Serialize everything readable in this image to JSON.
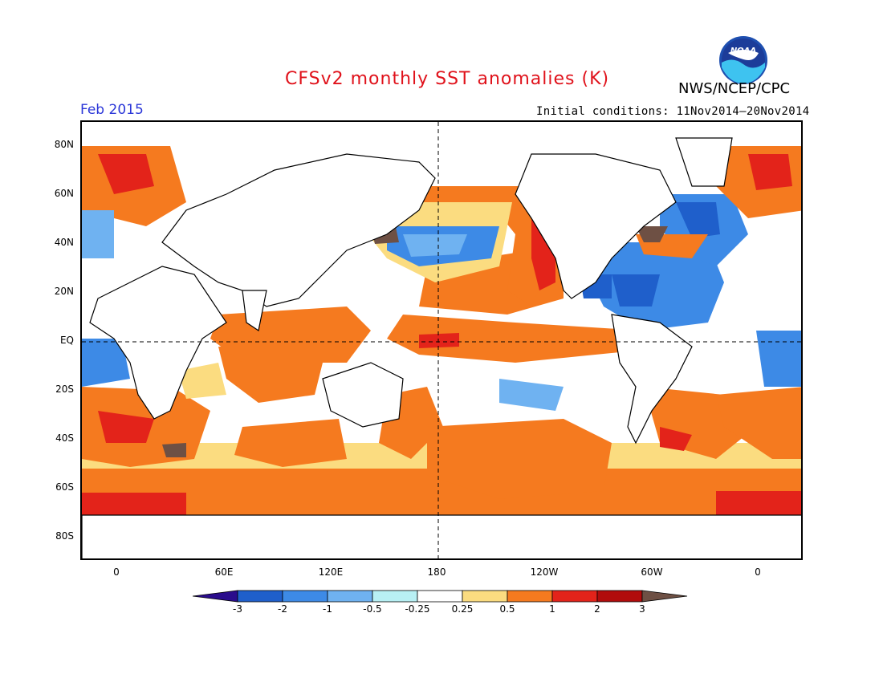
{
  "header": {
    "title": "CFSv2 monthly SST anomalies (K)",
    "agency": "NWS/NCEP/CPC",
    "logo_text": "NOAA",
    "month": "Feb 2015",
    "initial_conditions": "Initial conditions: 11Nov2014–20Nov2014"
  },
  "axes": {
    "lat_labels": [
      "80N",
      "60N",
      "40N",
      "20N",
      "EQ",
      "20S",
      "40S",
      "60S",
      "80S"
    ],
    "lon_labels": [
      "0",
      "60E",
      "120E",
      "180",
      "120W",
      "60W",
      "0"
    ]
  },
  "colorbar": {
    "labels": [
      "-3",
      "-2",
      "-1",
      "-0.5",
      "-0.25",
      "0.25",
      "0.5",
      "1",
      "2",
      "3"
    ],
    "colors": [
      "#2a0c8c",
      "#1f5fcb",
      "#3d8ae6",
      "#6fb2f1",
      "#b8f0f4",
      "#ffffff",
      "#fbdc80",
      "#f57a1f",
      "#e3231a",
      "#b10c0c",
      "#6e5044"
    ]
  },
  "colors": {
    "title": "#e0121b",
    "month": "#2a36d8",
    "land": "#ffffff",
    "coastline": "#000000"
  }
}
